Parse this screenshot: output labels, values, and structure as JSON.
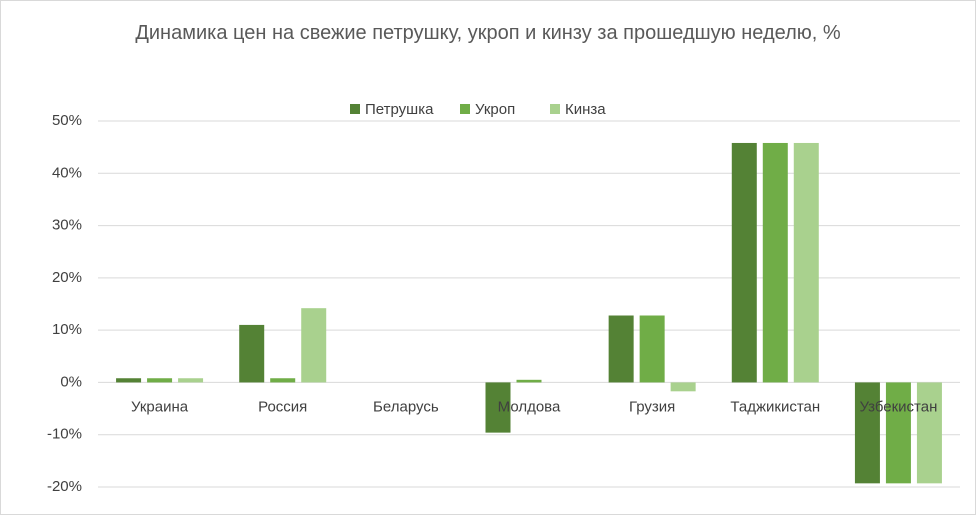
{
  "chart_data": {
    "type": "bar",
    "title": "Динамика цен на свежие петрушку, укроп и кинзу за прошедшую неделю, %",
    "categories": [
      "Украина",
      "Россия",
      "Беларусь",
      "Молдова",
      "Грузия",
      "Таджикистан",
      "Узбекистан"
    ],
    "series": [
      {
        "name": "Петрушка",
        "color": "#548235",
        "values": [
          0.8,
          11,
          0,
          -9.6,
          12.8,
          45.8,
          -19.3
        ]
      },
      {
        "name": "Укроп",
        "color": "#70ad47",
        "values": [
          0.8,
          0.8,
          0,
          0.5,
          12.8,
          45.8,
          -19.3
        ]
      },
      {
        "name": "Кинза",
        "color": "#a9d18e",
        "values": [
          0.8,
          14.2,
          0,
          0,
          -1.7,
          45.8,
          -19.3
        ]
      }
    ],
    "ylim": [
      -20,
      50
    ],
    "yticks": [
      {
        "value": -20,
        "label": "-20%"
      },
      {
        "value": -10,
        "label": "-10%"
      },
      {
        "value": 0,
        "label": "0%"
      },
      {
        "value": 10,
        "label": "10%"
      },
      {
        "value": 20,
        "label": "20%"
      },
      {
        "value": 30,
        "label": "30%"
      },
      {
        "value": 40,
        "label": "40%"
      },
      {
        "value": 50,
        "label": "50%"
      }
    ],
    "grid": true,
    "legend": "top"
  }
}
